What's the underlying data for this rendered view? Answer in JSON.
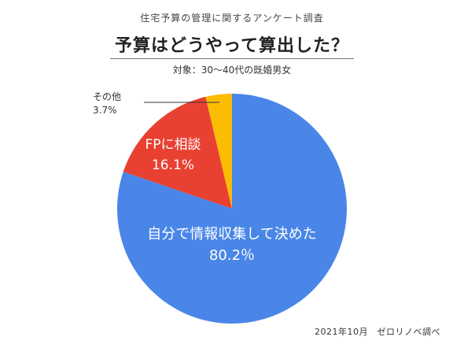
{
  "header": {
    "survey_label": "住宅予算の管理に関するアンケート調査",
    "subtitle": "対象：30〜40代の既婚男女"
  },
  "footer": {
    "note": "2021年10月　ゼロリノベ調べ"
  },
  "colors": {
    "self_research": "#4a86e8",
    "fp": "#e84132",
    "other": "#fbbc04"
  },
  "chart_data": {
    "type": "pie",
    "title": "予算はどうやって算出した？",
    "unit": "%",
    "slices": [
      {
        "label": "自分で情報収集して決めた",
        "value": 80.2,
        "value_label": "80.2％",
        "color": "#4a86e8"
      },
      {
        "label": "FPに相談",
        "value": 16.1,
        "value_label": "16.1%",
        "color": "#e84132"
      },
      {
        "label": "その他",
        "value": 3.7,
        "value_label": "3.7%",
        "color": "#fbbc04"
      }
    ],
    "start_angle_deg": 0,
    "direction": "clockwise"
  }
}
